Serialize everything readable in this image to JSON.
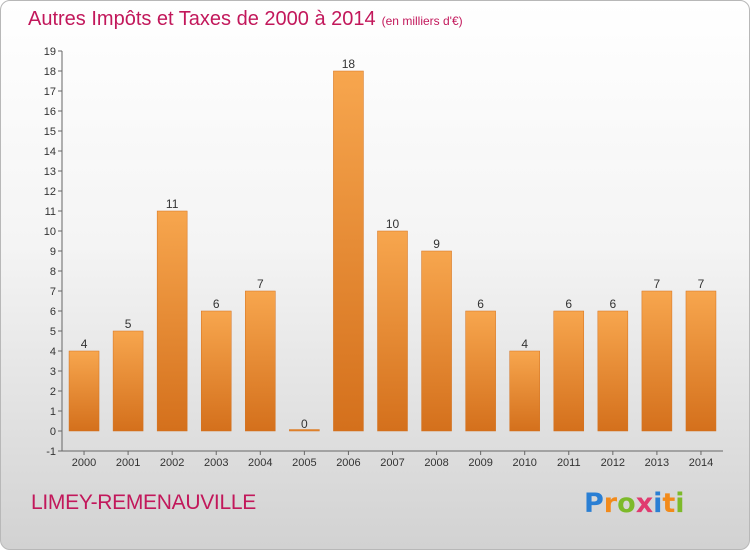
{
  "chart_data": {
    "type": "bar",
    "title": "Autres Impôts et Taxes de 2000 à 2014",
    "subtitle": "(en milliers d'€)",
    "categories": [
      "2000",
      "2001",
      "2002",
      "2003",
      "2004",
      "2005",
      "2006",
      "2007",
      "2008",
      "2009",
      "2010",
      "2011",
      "2012",
      "2013",
      "2014"
    ],
    "values": [
      4,
      5,
      11,
      6,
      7,
      0,
      18,
      10,
      9,
      6,
      4,
      6,
      6,
      7,
      7
    ],
    "ylim": [
      -1,
      19
    ],
    "yticks": [
      -1,
      0,
      1,
      2,
      3,
      4,
      5,
      6,
      7,
      8,
      9,
      10,
      11,
      12,
      13,
      14,
      15,
      16,
      17,
      18,
      19
    ],
    "xlabel": "",
    "ylabel": "",
    "grid": false,
    "bar_color": "#f0922e"
  },
  "footer": {
    "town": "LIMEY-REMENAUVILLE"
  },
  "logo": {
    "letters": [
      "P",
      "r",
      "o",
      "x",
      "i",
      "t",
      "i"
    ],
    "colors": [
      "#2a7fd4",
      "#f28a1a",
      "#7dba2a",
      "#e03a6f",
      "#2a7fd4",
      "#f28a1a",
      "#7dba2a"
    ]
  }
}
